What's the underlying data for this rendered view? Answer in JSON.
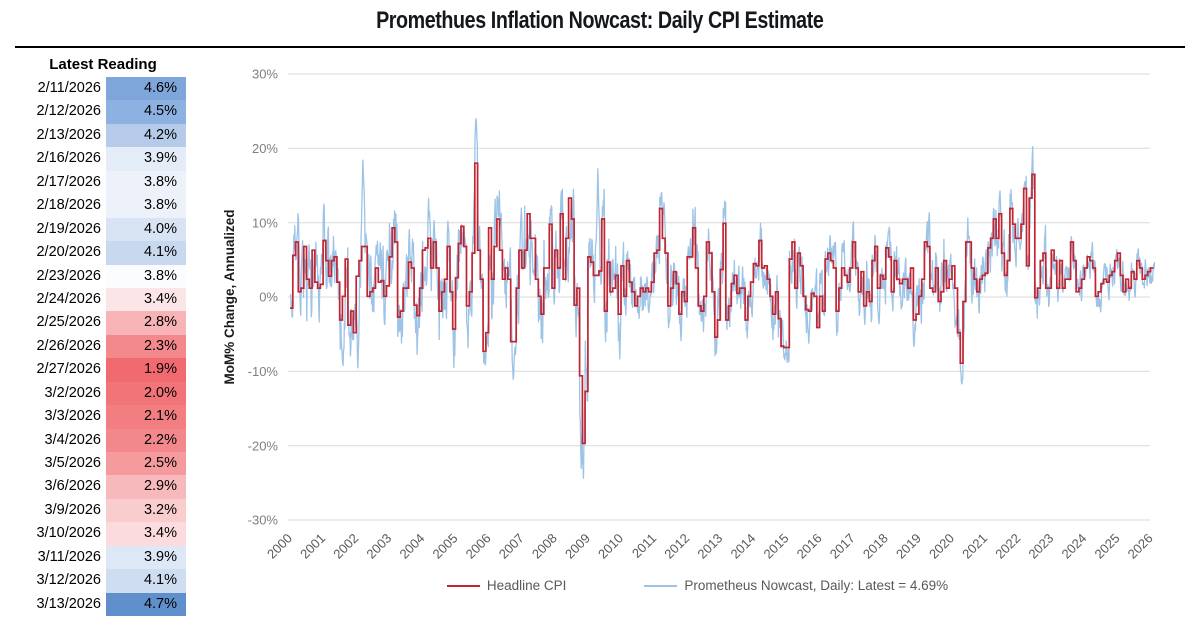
{
  "title": "Promethues Inflation Nowcast: Daily CPI Estimate",
  "table": {
    "header": "Latest Reading",
    "rows": [
      {
        "date": "2/11/2026",
        "value": "4.6%",
        "bg": "#7FA6DA"
      },
      {
        "date": "2/12/2026",
        "value": "4.5%",
        "bg": "#8DB1E0"
      },
      {
        "date": "2/13/2026",
        "value": "4.2%",
        "bg": "#B5CBE9"
      },
      {
        "date": "2/16/2026",
        "value": "3.9%",
        "bg": "#E4ECF7"
      },
      {
        "date": "2/17/2026",
        "value": "3.8%",
        "bg": "#EDF2FA"
      },
      {
        "date": "2/18/2026",
        "value": "3.8%",
        "bg": "#EDF2FA"
      },
      {
        "date": "2/19/2026",
        "value": "4.0%",
        "bg": "#D8E3F3"
      },
      {
        "date": "2/20/2026",
        "value": "4.1%",
        "bg": "#C8D8EF"
      },
      {
        "date": "2/23/2026",
        "value": "3.8%",
        "bg": "#FBFCFE"
      },
      {
        "date": "2/24/2026",
        "value": "3.4%",
        "bg": "#FCE5E6"
      },
      {
        "date": "2/25/2026",
        "value": "2.8%",
        "bg": "#F7B3B6"
      },
      {
        "date": "2/26/2026",
        "value": "2.3%",
        "bg": "#F3898D"
      },
      {
        "date": "2/27/2026",
        "value": "1.9%",
        "bg": "#F06A70"
      },
      {
        "date": "3/2/2026",
        "value": "2.0%",
        "bg": "#F17479"
      },
      {
        "date": "3/3/2026",
        "value": "2.1%",
        "bg": "#F27E82"
      },
      {
        "date": "3/4/2026",
        "value": "2.2%",
        "bg": "#F3888C"
      },
      {
        "date": "3/5/2026",
        "value": "2.5%",
        "bg": "#F59B9E"
      },
      {
        "date": "3/6/2026",
        "value": "2.9%",
        "bg": "#F7B9BB"
      },
      {
        "date": "3/9/2026",
        "value": "3.2%",
        "bg": "#F9CCCE"
      },
      {
        "date": "3/10/2026",
        "value": "3.4%",
        "bg": "#FBDBDD"
      },
      {
        "date": "3/11/2026",
        "value": "3.9%",
        "bg": "#DDE7F5"
      },
      {
        "date": "3/12/2026",
        "value": "4.1%",
        "bg": "#CFDDF1"
      },
      {
        "date": "3/13/2026",
        "value": "4.7%",
        "bg": "#5F90CC"
      }
    ]
  },
  "chart_data": {
    "type": "line",
    "title": "Promethues Inflation Nowcast: Daily CPI Estimate",
    "xlabel": "",
    "ylabel": "MoM% Change, Annualized",
    "ylim": [
      -30,
      30
    ],
    "ytick_values": [
      30,
      20,
      10,
      0,
      -10,
      -20,
      -30
    ],
    "ytick_labels": [
      "30%",
      "20%",
      "10%",
      "0%",
      "-10%",
      "-20%",
      "-30%"
    ],
    "xtick_labels": [
      "2000",
      "2001",
      "2002",
      "2003",
      "2004",
      "2005",
      "2006",
      "2007",
      "2008",
      "2009",
      "2010",
      "2011",
      "2012",
      "2013",
      "2014",
      "2015",
      "2016",
      "2017",
      "2018",
      "2019",
      "2020",
      "2021",
      "2022",
      "2023",
      "2024",
      "2025",
      "2026"
    ],
    "grid": true,
    "legend_position": "bottom",
    "series": [
      {
        "name": "Headline CPI",
        "color": "#C22532",
        "style": "step-monthly",
        "start_year": 2000,
        "values": [
          -1.5,
          5.6,
          7.4,
          0.7,
          1.2,
          6.8,
          2.4,
          1.2,
          6.3,
          2.0,
          1.2,
          1.7,
          7.6,
          4.9,
          2.8,
          4.9,
          5.4,
          2.0,
          -3.1,
          0.1,
          5.1,
          -3.8,
          -1.9,
          -4.8,
          2.8,
          4.9,
          6.8,
          6.8,
          0.1,
          0.7,
          1.2,
          3.9,
          2.0,
          2.2,
          0.1,
          1.5,
          5.4,
          9.3,
          7.4,
          -2.7,
          -1.9,
          1.2,
          1.2,
          4.7,
          3.9,
          -1.1,
          -2.5,
          1.2,
          6.3,
          6.6,
          7.9,
          3.9,
          7.4,
          3.9,
          -1.9,
          0.7,
          2.4,
          6.8,
          0.7,
          -4.3,
          2.6,
          7.2,
          9.5,
          6.8,
          -1.2,
          0.7,
          5.9,
          18.0,
          6.3,
          2.4,
          -7.3,
          -4.8,
          9.3,
          2.4,
          6.8,
          10.5,
          6.3,
          2.4,
          3.9,
          2.4,
          -6.0,
          -6.0,
          1.2,
          6.3,
          3.9,
          6.3,
          11.2,
          7.9,
          7.9,
          2.4,
          0.1,
          -2.3,
          3.9,
          3.9,
          9.8,
          1.2,
          6.3,
          3.9,
          11.2,
          2.4,
          7.9,
          13.3,
          10.5,
          -1.1,
          1.2,
          -10.6,
          -19.7,
          -12.7,
          5.4,
          4.7,
          2.9,
          2.9,
          3.5,
          10.5,
          -1.9,
          4.7,
          0.7,
          1.2,
          2.9,
          -2.3,
          4.2,
          0.1,
          4.9,
          2.0,
          0.7,
          -1.2,
          0.1,
          1.2,
          0.7,
          1.2,
          0.7,
          2.0,
          5.9,
          6.3,
          11.9,
          7.9,
          5.9,
          -1.2,
          1.2,
          3.4,
          1.8,
          -2.3,
          0.7,
          -0.6,
          5.4,
          5.4,
          9.3,
          3.9,
          -1.2,
          -1.9,
          0.1,
          7.4,
          5.9,
          0.7,
          -5.4,
          -3.1,
          3.7,
          9.9,
          -3.1,
          -1.2,
          1.8,
          2.9,
          0.5,
          1.2,
          1.2,
          -3.1,
          0.1,
          2.0,
          4.5,
          4.2,
          7.6,
          3.9,
          4.2,
          2.4,
          0.1,
          -2.3,
          0.7,
          -2.9,
          -6.6,
          -6.8,
          -6.8,
          5.1,
          7.4,
          1.2,
          5.9,
          4.2,
          0.1,
          -1.7,
          -1.9,
          0.5,
          0.1,
          -4.1,
          0.1,
          -1.9,
          5.1,
          5.9,
          4.9,
          3.9,
          -1.9,
          1.2,
          3.9,
          2.9,
          2.0,
          3.9,
          7.4,
          3.9,
          0.7,
          3.4,
          -1.2,
          0.7,
          -0.6,
          4.9,
          6.8,
          1.2,
          2.9,
          2.4,
          6.6,
          5.4,
          0.7,
          4.9,
          2.4,
          1.8,
          2.4,
          2.4,
          1.2,
          3.9,
          -3.1,
          -2.3,
          0.1,
          2.4,
          7.4,
          6.8,
          1.2,
          0.7,
          3.9,
          -0.6,
          0.7,
          4.9,
          1.2,
          2.4,
          4.2,
          1.2,
          -4.8,
          -8.9,
          -0.6,
          7.4,
          7.4,
          3.9,
          2.4,
          0.7,
          2.4,
          2.9,
          3.2,
          6.6,
          7.9,
          10.5,
          7.9,
          11.2,
          5.9,
          2.9,
          4.9,
          11.9,
          9.8,
          7.9,
          7.9,
          9.8,
          14.6,
          4.2,
          13.3,
          16.5,
          -0.1,
          1.2,
          4.9,
          5.9,
          1.2,
          1.2,
          6.3,
          4.9,
          1.2,
          4.9,
          1.2,
          2.4,
          2.4,
          7.4,
          4.9,
          0.7,
          1.2,
          2.4,
          3.9,
          5.4,
          4.9,
          3.9,
          0.1,
          0.7,
          1.8,
          2.4,
          2.0,
          2.9,
          3.4,
          4.9,
          5.9,
          2.9,
          0.7,
          2.4,
          1.2,
          3.4,
          2.4,
          4.9,
          3.9,
          2.4,
          2.9,
          3.4,
          3.9
        ]
      },
      {
        "name": "Prometheus Nowcast, Daily: Latest = 4.69%",
        "color": "#9DC3E6",
        "style": "daily-noisy-of-series-0",
        "latest_value": 4.69,
        "end_time": 2026.13,
        "anchors": [
          [
            2000.25,
            11.5
          ],
          [
            2001.6,
            -9.5
          ],
          [
            2002.05,
            -9.8
          ],
          [
            2002.2,
            18.5
          ],
          [
            2005.62,
            24.2
          ],
          [
            2006.75,
            -11.5
          ],
          [
            2007.9,
            12.3
          ],
          [
            2008.8,
            -23.5
          ],
          [
            2009.3,
            17.8
          ],
          [
            2011.3,
            12.8
          ],
          [
            2014.95,
            -8.5
          ],
          [
            2018.85,
            -6.9
          ],
          [
            2020.3,
            -11.8
          ],
          [
            2022.2,
            15.5
          ],
          [
            2026.13,
            4.69
          ]
        ]
      }
    ]
  },
  "colors": {
    "gridline": "#D9D9D9",
    "ytick_text": "#7F7F7F",
    "xtick_text": "#595959",
    "ylabel_text": "#1a1a1a",
    "legend_text": "#595959",
    "divider": "#000000"
  }
}
